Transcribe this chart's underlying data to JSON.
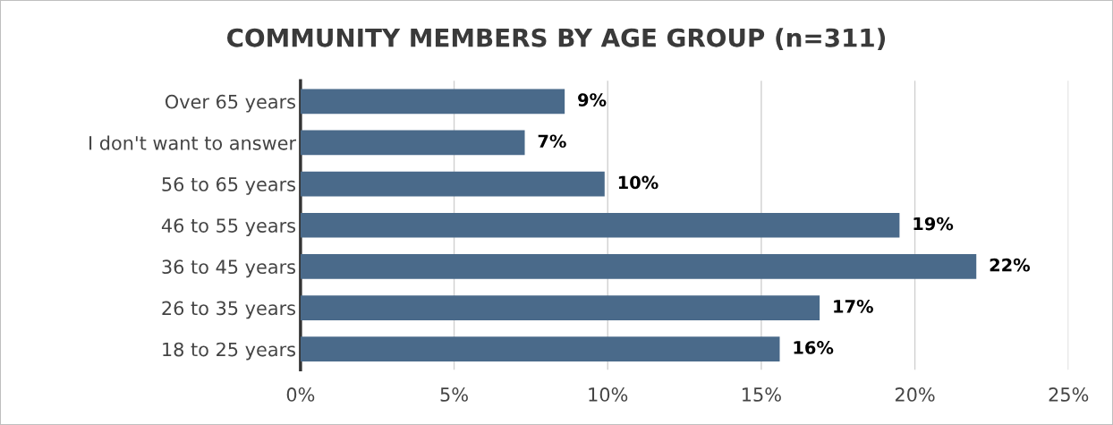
{
  "chart_data": {
    "type": "bar",
    "orientation": "horizontal",
    "title": "COMMUNITY MEMBERS BY AGE GROUP (n=311)",
    "categories": [
      "Over 65 years",
      "I don't want to answer",
      "56 to 65 years",
      "46 to 55 years",
      "36 to 45 years",
      "26 to 35 years",
      "18 to 25 years"
    ],
    "values": [
      8.6,
      7.3,
      9.9,
      19.5,
      22.0,
      16.9,
      15.6
    ],
    "value_labels": [
      "9%",
      "7%",
      "10%",
      "19%",
      "22%",
      "17%",
      "16%"
    ],
    "color": "#4a6a8a",
    "xlim": [
      0,
      25
    ],
    "xticks": [
      {
        "value": 0,
        "label": "0%"
      },
      {
        "value": 5,
        "label": "5%"
      },
      {
        "value": 10,
        "label": "10%"
      },
      {
        "value": 15,
        "label": "15%"
      },
      {
        "value": 20,
        "label": "20%"
      },
      {
        "value": 25,
        "label": "25%"
      }
    ],
    "grid": "x",
    "legend": false
  }
}
